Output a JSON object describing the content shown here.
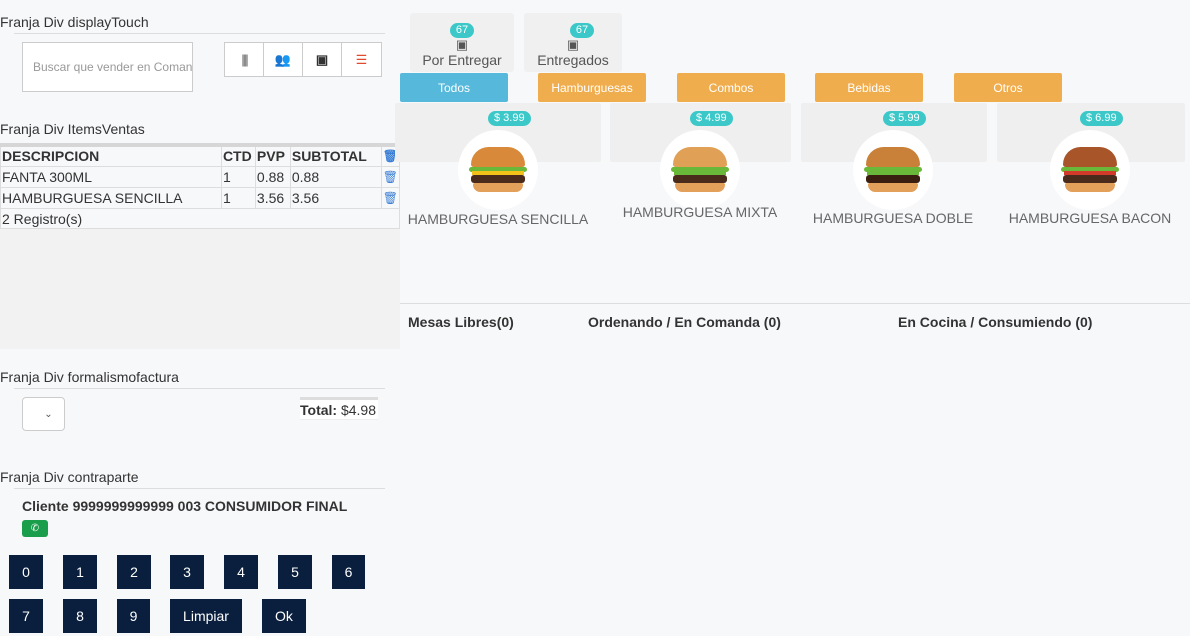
{
  "sections": {
    "display": "Franja Div displayTouch",
    "items": "Franja Div ItemsVentas",
    "formalismo": "Franja Div formalismofactura",
    "contraparte": "Franja Div contraparte"
  },
  "search": {
    "placeholder": "Buscar que vender en Comanda"
  },
  "toolbar": [
    {
      "icon": "barcode-icon"
    },
    {
      "icon": "users-icon"
    },
    {
      "icon": "money-icon"
    },
    {
      "icon": "database-icon",
      "color": "#e04a2f"
    }
  ],
  "table": {
    "headers": [
      "DESCRIPCION",
      "CTD",
      "PVP",
      "SUBTOTAL"
    ],
    "rows": [
      [
        "FANTA 300ML",
        "1",
        "0.88",
        "0.88"
      ],
      [
        "HAMBURGUESA SENCILLA",
        "1",
        "3.56",
        "3.56"
      ]
    ],
    "footer": "2 Registro(s)"
  },
  "total": {
    "label": "Total:",
    "value": "$4.98"
  },
  "client": "Cliente 9999999999999 003 CONSUMIDOR FINAL",
  "keypad": [
    "0",
    "1",
    "2",
    "3",
    "4",
    "5",
    "6",
    "7",
    "8",
    "9",
    "Limpiar",
    "Ok"
  ],
  "stats": [
    {
      "count": "67",
      "label": "Por Entregar"
    },
    {
      "count": "67",
      "label": "Entregados"
    }
  ],
  "categories": [
    {
      "label": "Todos",
      "color": "#56b9dc"
    },
    {
      "label": "Hamburguesas",
      "color": "#f0ad4e"
    },
    {
      "label": "Combos",
      "color": "#f0ad4e"
    },
    {
      "label": "Bebidas",
      "color": "#f0ad4e"
    },
    {
      "label": "Otros",
      "color": "#f0ad4e"
    }
  ],
  "products": [
    {
      "name": "HAMBURGUESA SENCILLA",
      "price": "$ 3.99"
    },
    {
      "name": "HAMBURGUESA MIXTA",
      "price": "$ 4.99"
    },
    {
      "name": "HAMBURGUESA DOBLE",
      "price": "$ 5.99"
    },
    {
      "name": "HAMBURGUESA BACON",
      "price": "$ 6.99"
    }
  ],
  "mesas": {
    "libres": "Mesas Libres(0)",
    "ordenando": "Ordenando / En Comanda (0)",
    "cocina": "En Cocina / Consumiendo (0)"
  }
}
